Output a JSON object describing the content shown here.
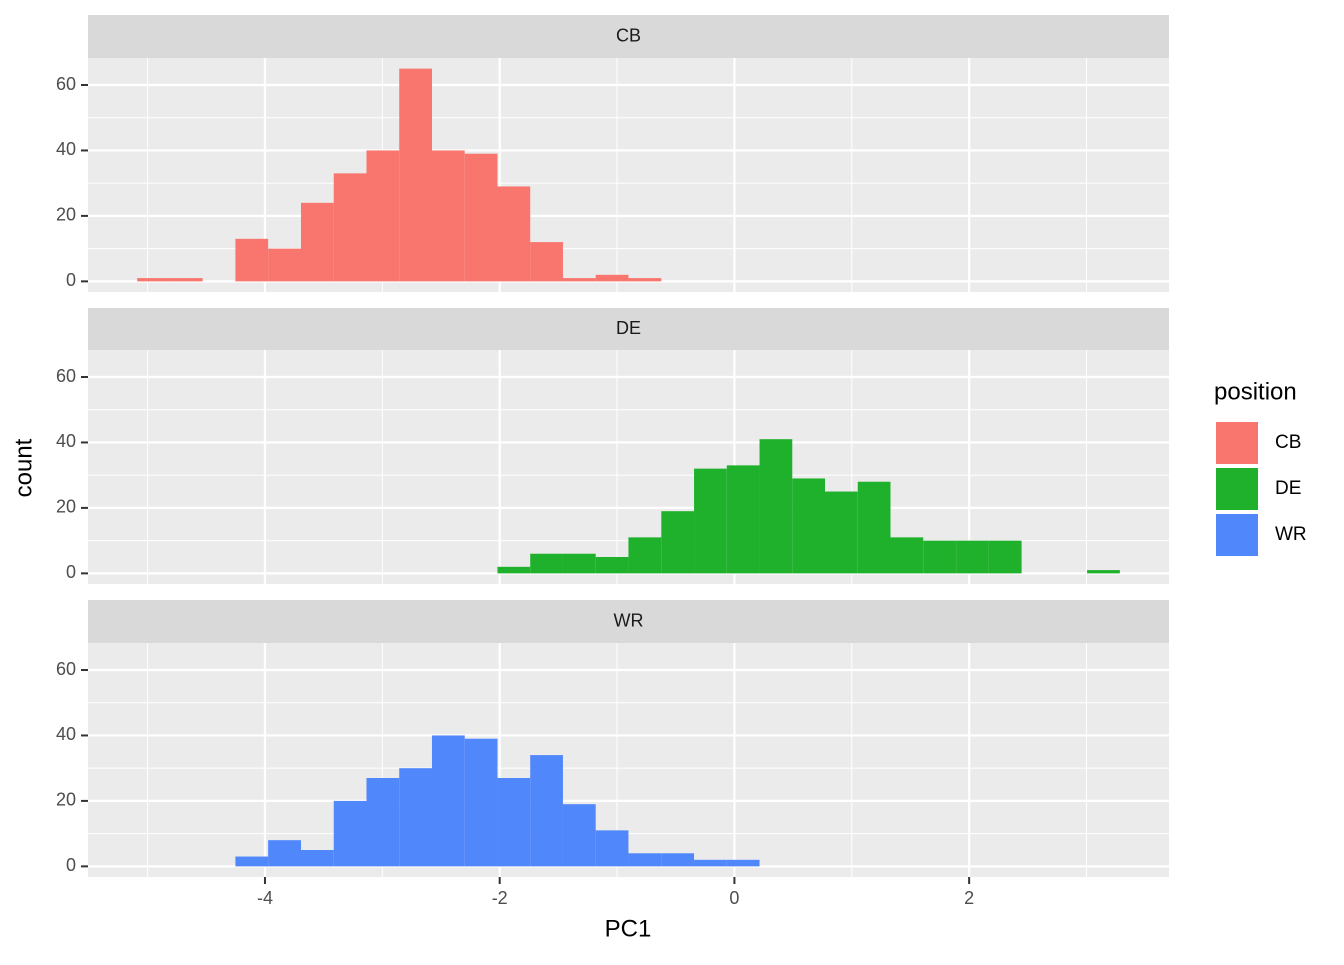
{
  "chart_data": {
    "type": "histogram",
    "x_label": "PC1",
    "y_label": "count",
    "legend_title": "position",
    "bins": [
      -5.089,
      -4.81,
      -4.531,
      -4.252,
      -3.973,
      -3.693,
      -3.414,
      -3.135,
      -2.856,
      -2.577,
      -2.298,
      -2.019,
      -1.74,
      -1.461,
      -1.182,
      -0.903,
      -0.623,
      -0.344,
      -0.065,
      0.214,
      0.493,
      0.772,
      1.051,
      1.33,
      1.609,
      1.889,
      2.168,
      2.447,
      2.726,
      3.005,
      3.284
    ],
    "series": [
      {
        "name": "CB",
        "color": "#f8766d",
        "values": [
          1,
          1,
          0,
          13,
          10,
          24,
          33,
          40,
          65,
          40,
          39,
          29,
          12,
          1,
          2,
          1,
          0,
          0,
          0,
          0,
          0,
          0,
          0,
          0,
          0,
          0,
          0,
          0,
          0,
          0
        ]
      },
      {
        "name": "DE",
        "color": "#1fb12c",
        "values": [
          0,
          0,
          0,
          0,
          0,
          0,
          0,
          0,
          0,
          0,
          0,
          2,
          6,
          6,
          5,
          11,
          19,
          32,
          33,
          41,
          29,
          25,
          28,
          11,
          10,
          10,
          10,
          0,
          0,
          1
        ]
      },
      {
        "name": "WR",
        "color": "#5087fb",
        "values": [
          0,
          0,
          0,
          3,
          8,
          5,
          20,
          27,
          30,
          40,
          39,
          27,
          34,
          19,
          11,
          4,
          4,
          2,
          2,
          0,
          0,
          0,
          0,
          0,
          0,
          0,
          0,
          0,
          0,
          0
        ]
      }
    ],
    "xlim": [
      -5.508,
      3.703
    ],
    "xticks": [
      -4,
      -2,
      0,
      2
    ],
    "ylim": [
      -3.25,
      68.25
    ],
    "yticks": [
      0,
      20,
      40,
      60
    ]
  }
}
